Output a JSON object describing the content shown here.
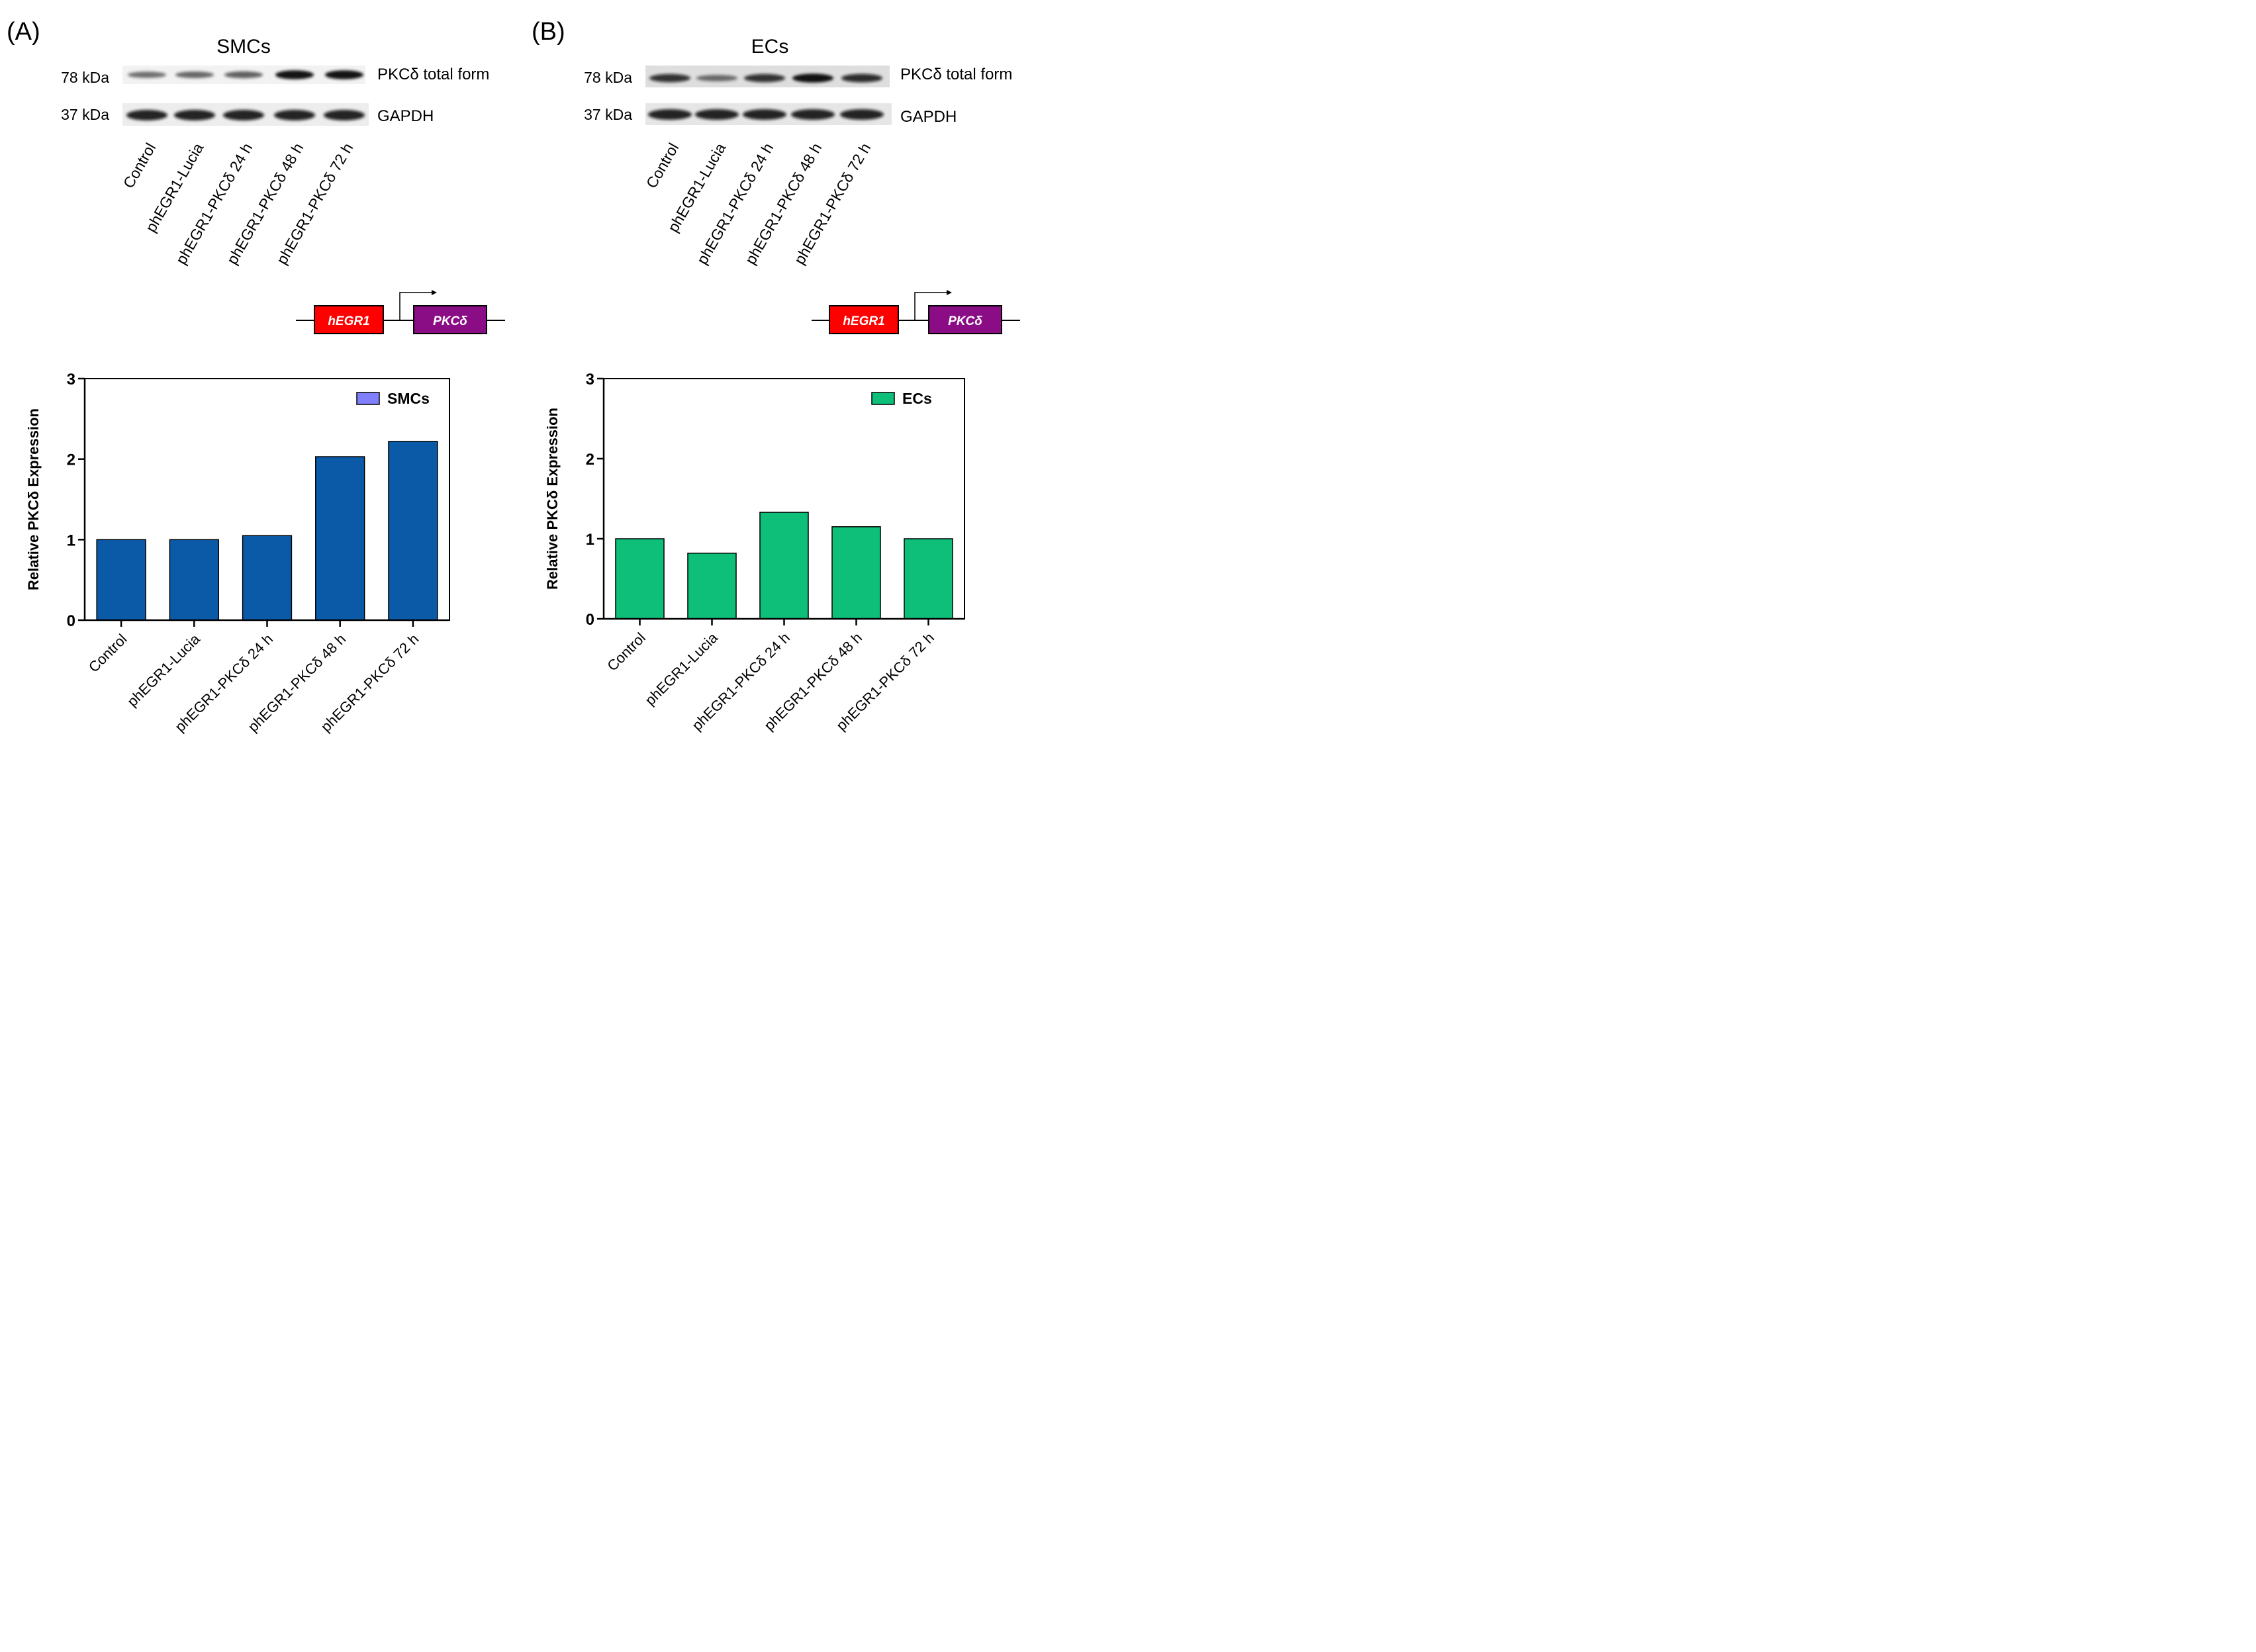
{
  "panels": {
    "a": {
      "letter": "(A)",
      "title": "SMCs"
    },
    "b": {
      "letter": "(B)",
      "title": "ECs"
    }
  },
  "blot": {
    "band_labels": {
      "kda78": "78 kDa",
      "kda37": "37 kDa",
      "pkc": "PKCδ total form",
      "gapdh": "GAPDH"
    },
    "lanes": [
      "Control",
      "phEGR1-Lucia",
      "phEGR1-PKCδ 24 h",
      "phEGR1-PKCδ 48 h",
      "phEGR1-PKCδ 72 h"
    ],
    "smc_pkc_intensity": [
      0.45,
      0.5,
      0.55,
      0.95,
      0.95
    ],
    "ec_pkc_intensity": [
      0.8,
      0.45,
      0.8,
      0.95,
      0.85
    ]
  },
  "construct": {
    "promoter": "hEGR1",
    "gene": "PKCδ",
    "promoter_color": "#ff0000",
    "gene_color": "#8b0d86"
  },
  "chart_data": [
    {
      "type": "bar",
      "title": "",
      "categories": [
        "Control",
        "phEGR1-Lucia",
        "phEGR1-PKCδ 24 h",
        "phEGR1-PKCδ 48 h",
        "phEGR1-PKCδ 72 h"
      ],
      "series": [
        {
          "name": "SMCs",
          "values": [
            1.0,
            1.0,
            1.05,
            2.03,
            2.22
          ]
        }
      ],
      "xlabel": "",
      "ylabel": "Relative PKCδ Expression",
      "ylim": [
        0,
        3
      ],
      "yticks": [
        "0",
        "1",
        "2",
        "3"
      ],
      "legend": "top-right",
      "bar_color": "#0a5aa8",
      "legend_color": "#8080ff"
    },
    {
      "type": "bar",
      "title": "",
      "categories": [
        "Control",
        "phEGR1-Lucia",
        "phEGR1-PKCδ 24 h",
        "phEGR1-PKCδ 48 h",
        "phEGR1-PKCδ 72 h"
      ],
      "series": [
        {
          "name": "ECs",
          "values": [
            1.0,
            0.82,
            1.33,
            1.15,
            1.0
          ]
        }
      ],
      "xlabel": "",
      "ylabel": "Relative PKCδ Expression",
      "ylim": [
        0,
        3
      ],
      "yticks": [
        "0",
        "1",
        "2",
        "3"
      ],
      "legend": "top-right",
      "bar_color": "#0dbf78",
      "legend_color": "#0dbf78"
    }
  ]
}
